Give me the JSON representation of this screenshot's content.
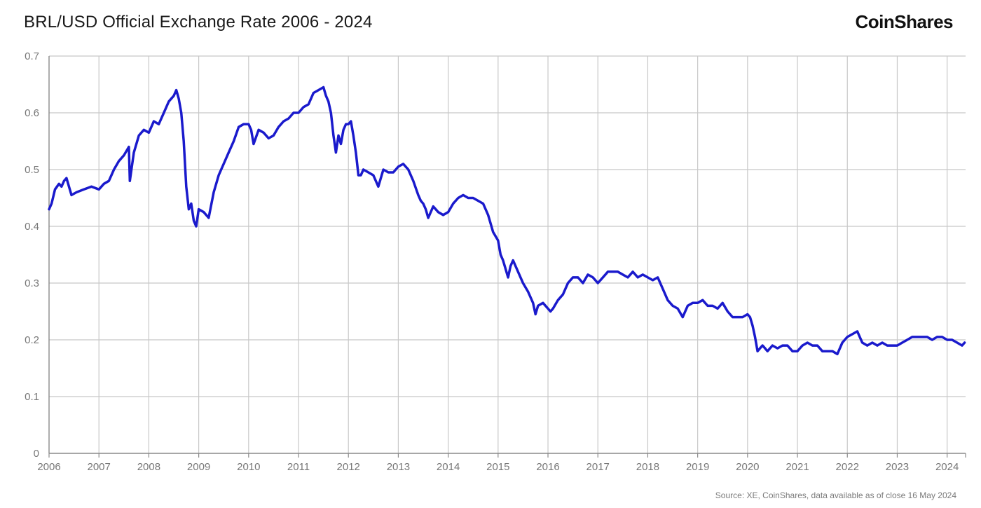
{
  "header": {
    "title": "BRL/USD Official Exchange Rate 2006 - 2024",
    "brand": "CoinShares"
  },
  "footer": {
    "source": "Source: XE, CoinShares, data available as of close 16 May 2024"
  },
  "colors": {
    "line": "#1a1acc",
    "grid": "#c8c8c8",
    "axis": "#8a8a8a"
  },
  "chart_data": {
    "type": "line",
    "title": "BRL/USD Official Exchange Rate 2006 - 2024",
    "xlabel": "",
    "ylabel": "",
    "xlim": [
      2006.0,
      2024.37
    ],
    "ylim": [
      0,
      0.7
    ],
    "x_ticks": [
      "2006",
      "2007",
      "2008",
      "2009",
      "2010",
      "2011",
      "2012",
      "2013",
      "2014",
      "2015",
      "2016",
      "2017",
      "2018",
      "2019",
      "2020",
      "2021",
      "2022",
      "2023",
      "2024"
    ],
    "y_ticks": [
      "0",
      "0.1",
      "0.2",
      "0.3",
      "0.4",
      "0.5",
      "0.6",
      "0.7"
    ],
    "grid": true,
    "legend": "none",
    "series": [
      {
        "name": "BRL/USD",
        "x": [
          2006.0,
          2006.05,
          2006.12,
          2006.2,
          2006.25,
          2006.3,
          2006.35,
          2006.45,
          2006.55,
          2006.7,
          2006.85,
          2007.0,
          2007.1,
          2007.2,
          2007.3,
          2007.4,
          2007.5,
          2007.6,
          2007.62,
          2007.7,
          2007.8,
          2007.9,
          2008.0,
          2008.1,
          2008.2,
          2008.3,
          2008.4,
          2008.5,
          2008.55,
          2008.6,
          2008.65,
          2008.7,
          2008.75,
          2008.8,
          2008.85,
          2008.9,
          2008.95,
          2009.0,
          2009.1,
          2009.2,
          2009.3,
          2009.4,
          2009.5,
          2009.6,
          2009.7,
          2009.8,
          2009.9,
          2010.0,
          2010.05,
          2010.1,
          2010.2,
          2010.3,
          2010.4,
          2010.5,
          2010.6,
          2010.7,
          2010.8,
          2010.9,
          2011.0,
          2011.1,
          2011.2,
          2011.3,
          2011.4,
          2011.5,
          2011.55,
          2011.6,
          2011.65,
          2011.7,
          2011.75,
          2011.8,
          2011.85,
          2011.9,
          2011.95,
          2012.0,
          2012.05,
          2012.1,
          2012.15,
          2012.2,
          2012.25,
          2012.3,
          2012.4,
          2012.5,
          2012.6,
          2012.7,
          2012.8,
          2012.9,
          2013.0,
          2013.1,
          2013.2,
          2013.3,
          2013.4,
          2013.45,
          2013.5,
          2013.55,
          2013.6,
          2013.7,
          2013.8,
          2013.9,
          2014.0,
          2014.1,
          2014.2,
          2014.3,
          2014.4,
          2014.5,
          2014.6,
          2014.7,
          2014.8,
          2014.9,
          2015.0,
          2015.05,
          2015.1,
          2015.15,
          2015.2,
          2015.25,
          2015.3,
          2015.4,
          2015.5,
          2015.6,
          2015.7,
          2015.75,
          2015.8,
          2015.9,
          2016.0,
          2016.05,
          2016.1,
          2016.2,
          2016.3,
          2016.4,
          2016.5,
          2016.6,
          2016.7,
          2016.8,
          2016.9,
          2017.0,
          2017.1,
          2017.2,
          2017.3,
          2017.4,
          2017.5,
          2017.6,
          2017.7,
          2017.8,
          2017.9,
          2018.0,
          2018.1,
          2018.2,
          2018.3,
          2018.4,
          2018.5,
          2018.6,
          2018.7,
          2018.8,
          2018.9,
          2019.0,
          2019.1,
          2019.2,
          2019.3,
          2019.4,
          2019.5,
          2019.6,
          2019.7,
          2019.8,
          2019.9,
          2020.0,
          2020.05,
          2020.1,
          2020.15,
          2020.2,
          2020.25,
          2020.3,
          2020.35,
          2020.4,
          2020.5,
          2020.6,
          2020.7,
          2020.8,
          2020.9,
          2021.0,
          2021.05,
          2021.1,
          2021.2,
          2021.3,
          2021.4,
          2021.5,
          2021.6,
          2021.7,
          2021.8,
          2021.9,
          2022.0,
          2022.1,
          2022.2,
          2022.25,
          2022.3,
          2022.4,
          2022.5,
          2022.6,
          2022.7,
          2022.8,
          2022.9,
          2023.0,
          2023.1,
          2023.2,
          2023.3,
          2023.4,
          2023.5,
          2023.6,
          2023.7,
          2023.8,
          2023.9,
          2024.0,
          2024.1,
          2024.2,
          2024.3,
          2024.35
        ],
        "values": [
          0.43,
          0.44,
          0.465,
          0.475,
          0.47,
          0.48,
          0.485,
          0.455,
          0.46,
          0.465,
          0.47,
          0.465,
          0.475,
          0.48,
          0.5,
          0.515,
          0.525,
          0.54,
          0.48,
          0.53,
          0.56,
          0.57,
          0.565,
          0.585,
          0.58,
          0.6,
          0.62,
          0.63,
          0.64,
          0.625,
          0.6,
          0.55,
          0.47,
          0.43,
          0.44,
          0.41,
          0.4,
          0.43,
          0.425,
          0.415,
          0.46,
          0.49,
          0.51,
          0.53,
          0.55,
          0.575,
          0.58,
          0.58,
          0.57,
          0.545,
          0.57,
          0.565,
          0.555,
          0.56,
          0.575,
          0.585,
          0.59,
          0.6,
          0.6,
          0.61,
          0.615,
          0.635,
          0.64,
          0.645,
          0.63,
          0.62,
          0.6,
          0.56,
          0.53,
          0.56,
          0.545,
          0.57,
          0.58,
          0.58,
          0.585,
          0.56,
          0.53,
          0.49,
          0.49,
          0.5,
          0.495,
          0.49,
          0.47,
          0.5,
          0.495,
          0.495,
          0.505,
          0.51,
          0.5,
          0.48,
          0.455,
          0.445,
          0.44,
          0.43,
          0.415,
          0.435,
          0.425,
          0.42,
          0.425,
          0.44,
          0.45,
          0.455,
          0.45,
          0.45,
          0.445,
          0.44,
          0.42,
          0.39,
          0.375,
          0.35,
          0.34,
          0.325,
          0.31,
          0.33,
          0.34,
          0.32,
          0.3,
          0.285,
          0.265,
          0.245,
          0.26,
          0.265,
          0.255,
          0.25,
          0.255,
          0.27,
          0.28,
          0.3,
          0.31,
          0.31,
          0.3,
          0.315,
          0.31,
          0.3,
          0.31,
          0.32,
          0.32,
          0.32,
          0.315,
          0.31,
          0.32,
          0.31,
          0.315,
          0.31,
          0.305,
          0.31,
          0.29,
          0.27,
          0.26,
          0.255,
          0.24,
          0.26,
          0.265,
          0.265,
          0.27,
          0.26,
          0.26,
          0.255,
          0.265,
          0.25,
          0.24,
          0.24,
          0.24,
          0.245,
          0.24,
          0.225,
          0.205,
          0.18,
          0.185,
          0.19,
          0.185,
          0.18,
          0.19,
          0.185,
          0.19,
          0.19,
          0.18,
          0.18,
          0.185,
          0.19,
          0.195,
          0.19,
          0.19,
          0.18,
          0.18,
          0.18,
          0.175,
          0.195,
          0.205,
          0.21,
          0.215,
          0.205,
          0.195,
          0.19,
          0.195,
          0.19,
          0.195,
          0.19,
          0.19,
          0.19,
          0.195,
          0.2,
          0.205,
          0.205,
          0.205,
          0.205,
          0.2,
          0.205,
          0.205,
          0.2,
          0.2,
          0.195,
          0.19,
          0.195
        ]
      }
    ]
  }
}
